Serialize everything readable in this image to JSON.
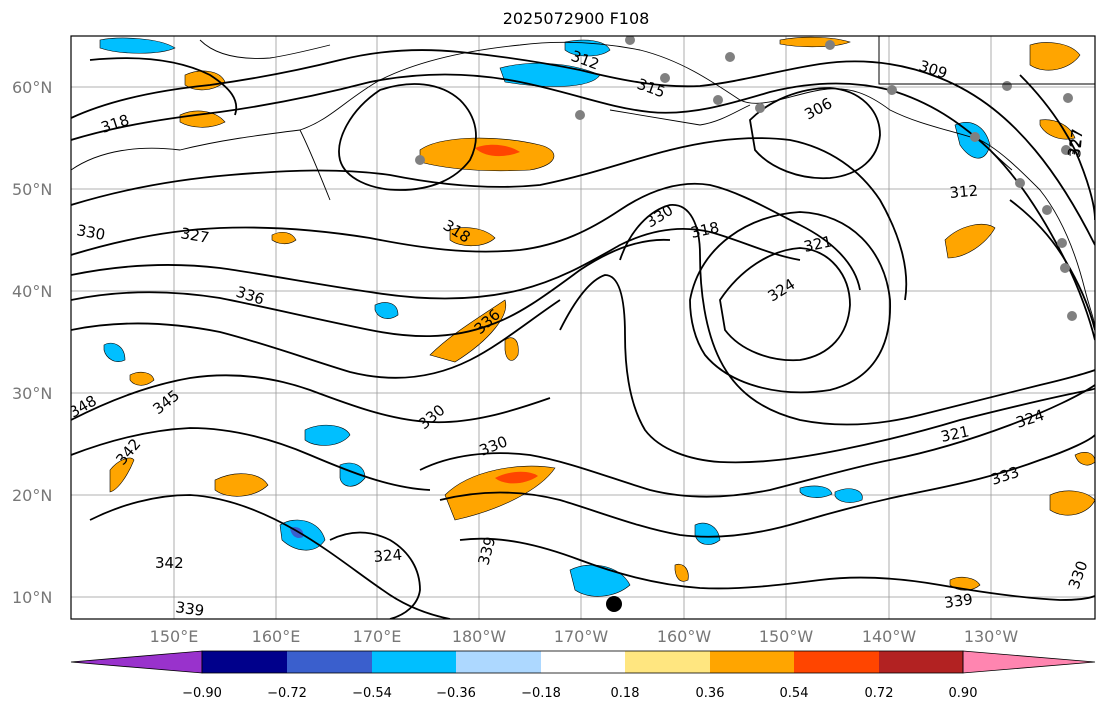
{
  "title": "2025072900 F108",
  "lat_labels": [
    "60°N",
    "50°N",
    "40°N",
    "30°N",
    "20°N",
    "10°N"
  ],
  "lon_labels": [
    "150°E",
    "160°E",
    "170°E",
    "180°W",
    "170°W",
    "160°W",
    "150°W",
    "140°W",
    "130°W"
  ],
  "colorbar": {
    "ticks": [
      "−0.90",
      "−0.72",
      "−0.54",
      "−0.36",
      "−0.18",
      "0.18",
      "0.36",
      "0.54",
      "0.72",
      "0.90"
    ],
    "colors": [
      "#9932cc",
      "#00008b",
      "#3a5fcd",
      "#00bfff",
      "#add8ff",
      "#ffffff",
      "#ffe680",
      "#ffa500",
      "#ff4500",
      "#b22222",
      "#ff85b0"
    ]
  },
  "contour_labels": [
    "318",
    "312",
    "315",
    "309",
    "306",
    "327",
    "312",
    "318",
    "330",
    "318",
    "321",
    "324",
    "327",
    "330",
    "327",
    "336",
    "336",
    "345",
    "348",
    "342",
    "330",
    "330",
    "321",
    "324",
    "333",
    "342",
    "324",
    "339",
    "339",
    "339",
    "330"
  ],
  "palette": {
    "stations": "#808080",
    "marker": "#000000",
    "contour": "#000000",
    "grid": "#999999"
  }
}
